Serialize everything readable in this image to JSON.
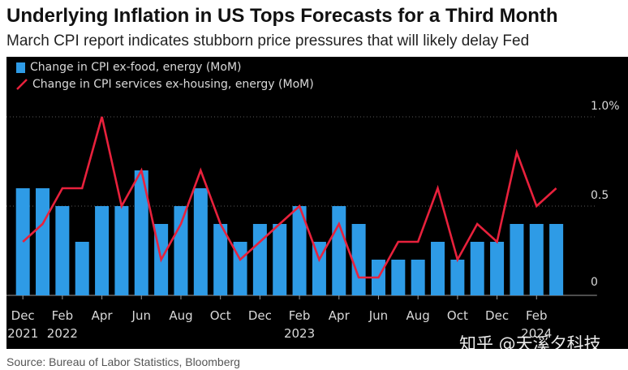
{
  "header": {
    "title": "Underlying Inflation in US Tops Forecasts for a Third Month",
    "subtitle": "March CPI report indicates stubborn price pressures that will likely delay Fed"
  },
  "footer": {
    "source": "Source: Bureau of Labor Statistics, Bloomberg",
    "watermark": "知乎 @天溪夕科技"
  },
  "colors": {
    "bar": "#2e9be6",
    "line": "#e8213c",
    "background": "#000000",
    "text": "#d9d9d9"
  },
  "chart_data": {
    "type": "bar",
    "title": "Underlying Inflation in US Tops Forecasts for a Third Month",
    "subtitle": "March CPI report indicates stubborn price pressures that will likely delay Fed",
    "legend": [
      "Change in CPI ex-food, energy (MoM)",
      "Change in CPI services ex-housing, energy (MoM)"
    ],
    "categories": [
      "Dec 2021",
      "Jan 2022",
      "Feb 2022",
      "Mar 2022",
      "Apr 2022",
      "May 2022",
      "Jun 2022",
      "Jul 2022",
      "Aug 2022",
      "Sep 2022",
      "Oct 2022",
      "Nov 2022",
      "Dec 2022",
      "Jan 2023",
      "Feb 2023",
      "Mar 2023",
      "Apr 2023",
      "May 2023",
      "Jun 2023",
      "Jul 2023",
      "Aug 2023",
      "Sep 2023",
      "Oct 2023",
      "Nov 2023",
      "Dec 2023",
      "Jan 2024",
      "Feb 2024",
      "Mar 2024"
    ],
    "series": [
      {
        "name": "Change in CPI ex-food, energy (MoM)",
        "kind": "bar",
        "values": [
          0.6,
          0.6,
          0.5,
          0.3,
          0.5,
          0.5,
          0.7,
          0.4,
          0.5,
          0.6,
          0.4,
          0.3,
          0.4,
          0.4,
          0.5,
          0.3,
          0.5,
          0.4,
          0.2,
          0.2,
          0.2,
          0.3,
          0.2,
          0.3,
          0.3,
          0.4,
          0.4,
          0.4
        ]
      },
      {
        "name": "Change in CPI services ex-housing, energy (MoM)",
        "kind": "line",
        "values": [
          0.3,
          0.4,
          0.6,
          0.6,
          1.0,
          0.5,
          0.7,
          0.2,
          0.4,
          0.7,
          0.4,
          0.2,
          0.3,
          0.4,
          0.5,
          0.2,
          0.4,
          0.1,
          0.1,
          0.3,
          0.3,
          0.6,
          0.2,
          0.4,
          0.3,
          0.8,
          0.5,
          0.6
        ]
      }
    ],
    "y_ticks": [
      {
        "value": 0,
        "label": "0"
      },
      {
        "value": 0.5,
        "label": "0.5"
      },
      {
        "value": 1.0,
        "label": "1.0%"
      }
    ],
    "x_ticks": [
      {
        "index": 0,
        "month": "Dec",
        "year": "2021"
      },
      {
        "index": 2,
        "month": "Feb",
        "year": "2022"
      },
      {
        "index": 4,
        "month": "Apr",
        "year": ""
      },
      {
        "index": 6,
        "month": "Jun",
        "year": ""
      },
      {
        "index": 8,
        "month": "Aug",
        "year": ""
      },
      {
        "index": 10,
        "month": "Oct",
        "year": ""
      },
      {
        "index": 12,
        "month": "Dec",
        "year": ""
      },
      {
        "index": 14,
        "month": "Feb",
        "year": "2023"
      },
      {
        "index": 16,
        "month": "Apr",
        "year": ""
      },
      {
        "index": 18,
        "month": "Jun",
        "year": ""
      },
      {
        "index": 20,
        "month": "Aug",
        "year": ""
      },
      {
        "index": 22,
        "month": "Oct",
        "year": ""
      },
      {
        "index": 24,
        "month": "Dec",
        "year": ""
      },
      {
        "index": 26,
        "month": "Feb",
        "year": "2024"
      }
    ],
    "ylim": [
      0,
      1.0
    ],
    "grid": true,
    "legend_position": "top-left",
    "xlabel": "",
    "ylabel": ""
  }
}
